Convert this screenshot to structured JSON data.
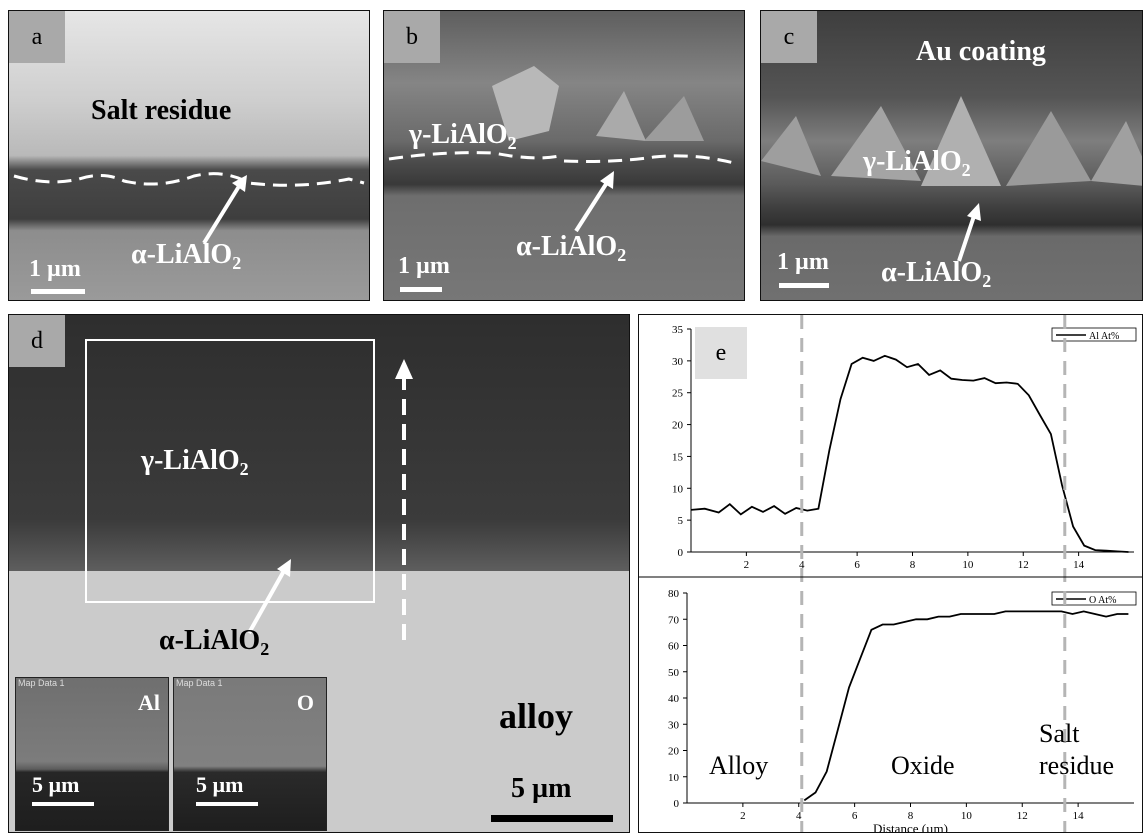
{
  "panels": {
    "a": {
      "letter": "a",
      "salt": "Salt residue",
      "alpha": "α-LiAlO",
      "sub": "2",
      "scale": "1 µm"
    },
    "b": {
      "letter": "b",
      "gamma": "γ-LiAlO",
      "gsub": "2",
      "alpha": "α-LiAlO",
      "asub": "2",
      "scale": "1 µm"
    },
    "c": {
      "letter": "c",
      "au": "Au coating",
      "gamma": "γ-LiAlO",
      "gsub": "2",
      "alpha": "α-LiAlO",
      "asub": "2",
      "scale": "1 µm"
    },
    "d": {
      "letter": "d",
      "gamma": "γ-LiAlO",
      "gsub": "2",
      "alpha": "α-LiAlO",
      "asub": "2",
      "alloy": "alloy",
      "scale": "5 µm",
      "map1_title": "Map Data 1",
      "map1_el": "Al",
      "map1_scale": "5 µm",
      "map2_title": "Map Data 1",
      "map2_el": "O",
      "map2_scale": "5 µm"
    },
    "e": {
      "letter": "e",
      "alloy": "Alloy",
      "oxide": "Oxide",
      "salt1": "Salt",
      "salt2": "residue"
    }
  },
  "colors": {
    "sem_dark": "#3a3a3a",
    "alloy_gray": "#c9c9c9",
    "letter_box": "#a9a9a9",
    "guide": "#b5b5b5"
  },
  "chart_data": [
    {
      "type": "line",
      "xlabel": "",
      "ylabel": "",
      "xlim": [
        0,
        16
      ],
      "ylim": [
        0,
        35
      ],
      "xticks": [
        2,
        4,
        6,
        8,
        10,
        12,
        14
      ],
      "yticks": [
        0,
        5,
        10,
        15,
        20,
        25,
        30,
        35
      ],
      "legend": "top-right",
      "series": [
        {
          "name": "Al At%",
          "x": [
            0,
            0.5,
            1,
            1.4,
            1.8,
            2.2,
            2.6,
            3,
            3.4,
            3.8,
            4.2,
            4.6,
            5,
            5.4,
            5.8,
            6.2,
            6.6,
            7,
            7.4,
            7.8,
            8.2,
            8.6,
            9,
            9.4,
            9.8,
            10.2,
            10.6,
            11,
            11.4,
            11.8,
            12.2,
            12.6,
            13,
            13.4,
            13.8,
            14.2,
            14.6,
            15,
            15.4,
            15.8
          ],
          "values": [
            6.6,
            6.8,
            6.2,
            7.5,
            5.9,
            7.1,
            6.3,
            7.2,
            6.0,
            6.9,
            6.5,
            6.8,
            16,
            24,
            29.5,
            30.5,
            30.0,
            30.8,
            30.2,
            29.0,
            29.5,
            27.8,
            28.5,
            27.2,
            27.0,
            26.9,
            27.3,
            26.5,
            26.6,
            26.4,
            24.6,
            21.5,
            18.5,
            10.5,
            4.0,
            1.0,
            0.3,
            0.2,
            0.1,
            0.0
          ]
        }
      ],
      "guides_x": [
        4.0,
        13.5
      ]
    },
    {
      "type": "line",
      "xlabel": "Distance (µm)",
      "ylabel": "",
      "xlim": [
        0,
        16
      ],
      "ylim": [
        0,
        80
      ],
      "xticks": [
        2,
        4,
        6,
        8,
        10,
        12,
        14
      ],
      "yticks": [
        0,
        10,
        20,
        30,
        40,
        50,
        60,
        70,
        80
      ],
      "legend": "top-right",
      "series": [
        {
          "name": "O At%",
          "x": [
            4.2,
            4.6,
            5,
            5.4,
            5.8,
            6.2,
            6.6,
            7,
            7.4,
            7.8,
            8.2,
            8.6,
            9,
            9.4,
            9.8,
            10.2,
            10.6,
            11,
            11.4,
            11.8,
            12.2,
            12.6,
            13,
            13.4,
            13.8,
            14.2,
            14.6,
            15,
            15.4,
            15.8
          ],
          "values": [
            1,
            4,
            12,
            28,
            44,
            55,
            66,
            68,
            68,
            69,
            70,
            70,
            71,
            71,
            72,
            72,
            72,
            72,
            73,
            73,
            73,
            73,
            73,
            73,
            72,
            73,
            72,
            71,
            72,
            72
          ]
        }
      ],
      "guides_x": [
        4.0,
        13.5
      ]
    }
  ]
}
